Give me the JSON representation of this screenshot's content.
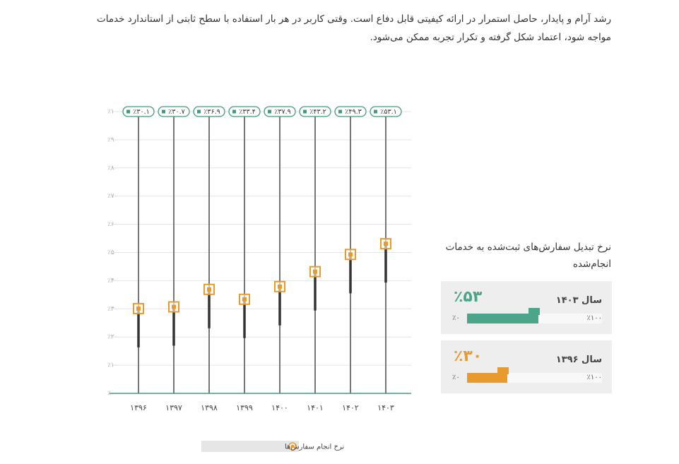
{
  "intro": "رشد آرام و پایدار، حاصل استمرار در ارائه کیفیتی قابل دفاع است. وقتی کاربر در هر بار استفاده با سطح ثابتی از استاندارد خدمات مواجه شود، اعتماد شکل گرفته و تکرار تجربه ممکن می‌شود.",
  "chart_data": {
    "type": "lollipop",
    "categories": [
      "۱۳۹۶",
      "۱۳۹۷",
      "۱۳۹۸",
      "۱۳۹۹",
      "۱۴۰۰",
      "۱۴۰۱",
      "۱۴۰۲",
      "۱۴۰۳"
    ],
    "series": [
      {
        "name": "نرخ انجام سفارش‌ها",
        "color": "#e89a2c",
        "values": [
          30.1,
          30.7,
          36.9,
          33.4,
          37.9,
          43.2,
          49.3,
          53.1
        ],
        "value_labels": [
          "٪۳۰.۱",
          "٪۳۰.۷",
          "٪۳۶.۹",
          "٪۳۳.۴",
          "٪۳۷.۹",
          "٪۴۳.۲",
          "٪۴۹.۳",
          "٪۵۳.۱"
        ]
      }
    ],
    "label_color": "#3e9c7e",
    "ylim": [
      0,
      100
    ],
    "yticks": [
      {
        "value": 0,
        "label": "٪۰"
      },
      {
        "value": 10,
        "label": "٪۱۰"
      },
      {
        "value": 20,
        "label": "٪۲۰"
      },
      {
        "value": 30,
        "label": "٪۳۰"
      },
      {
        "value": 40,
        "label": "٪۴۰"
      },
      {
        "value": 50,
        "label": "٪۵۰"
      },
      {
        "value": 60,
        "label": "٪۶۰"
      },
      {
        "value": 70,
        "label": "٪۷۰"
      },
      {
        "value": 80,
        "label": "٪۸۰"
      },
      {
        "value": 90,
        "label": "٪۹۰"
      },
      {
        "value": 100,
        "label": "٪۱۰۰"
      }
    ],
    "grid": true,
    "legend": "bottom"
  },
  "summary": {
    "title": "نرخ تبدیل سفارش‌های ثبت‌شده به خدمات انجام‌شده",
    "cards": [
      {
        "year_label": "سال ۱۴۰۳",
        "value": 53,
        "value_label": "٪۵۳",
        "color": "#4aa58a",
        "scale": [
          {
            "value": 0,
            "label": "٪۰"
          },
          {
            "value": 100,
            "label": "٪۱۰۰"
          }
        ]
      },
      {
        "year_label": "سال ۱۳۹۶",
        "value": 30,
        "value_label": "٪۳۰",
        "color": "#e89a2c",
        "scale": [
          {
            "value": 0,
            "label": "٪۰"
          },
          {
            "value": 100,
            "label": "٪۱۰۰"
          }
        ]
      }
    ]
  }
}
